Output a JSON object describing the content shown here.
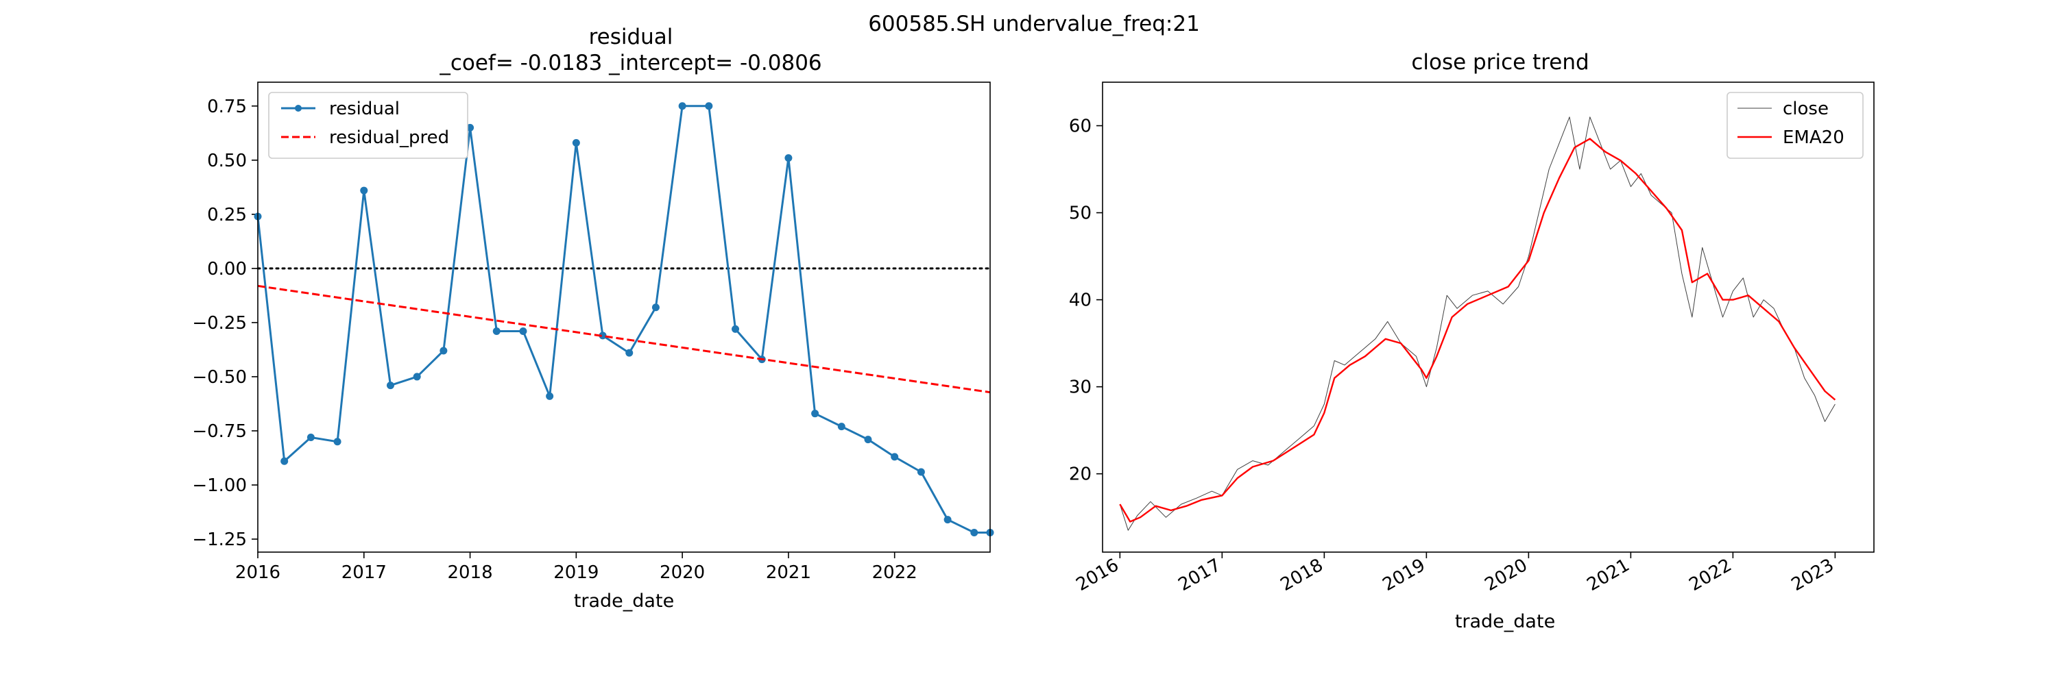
{
  "figure": {
    "suptitle": "600585.SH undervalue_freq:21"
  },
  "chart_data": [
    {
      "type": "line",
      "title_line1": "residual",
      "title_line2": "_coef= -0.0183   _intercept= -0.0806",
      "xlabel": "trade_date",
      "ylabel": "",
      "xlim": [
        2016.0,
        2022.9
      ],
      "ylim": [
        -1.31,
        0.86
      ],
      "x_ticks": [
        2016,
        2017,
        2018,
        2019,
        2020,
        2021,
        2022
      ],
      "x_tick_labels": [
        "2016",
        "2017",
        "2018",
        "2019",
        "2020",
        "2021",
        "2022"
      ],
      "y_ticks": [
        0.75,
        0.5,
        0.25,
        0.0,
        -0.25,
        -0.5,
        -0.75,
        -1.0,
        -1.25
      ],
      "y_tick_labels": [
        "0.75",
        "0.50",
        "0.25",
        "0.00",
        "−0.25",
        "−0.50",
        "−0.75",
        "−1.00",
        "−1.25"
      ],
      "legend_position": "top-left",
      "zero_line": true,
      "series": [
        {
          "name": "residual",
          "color": "#1f77b4",
          "marker": "dot",
          "x": [
            2016.0,
            2016.25,
            2016.5,
            2016.75,
            2017.0,
            2017.25,
            2017.5,
            2017.75,
            2018.0,
            2018.25,
            2018.5,
            2018.75,
            2019.0,
            2019.25,
            2019.5,
            2019.75,
            2020.0,
            2020.25,
            2020.5,
            2020.75,
            2021.0,
            2021.25,
            2021.5,
            2021.75,
            2022.0,
            2022.25,
            2022.5,
            2022.75,
            2022.9
          ],
          "y": [
            0.24,
            -0.89,
            -0.78,
            -0.8,
            0.36,
            -0.54,
            -0.5,
            -0.38,
            0.65,
            -0.29,
            -0.29,
            -0.59,
            0.58,
            -0.31,
            -0.39,
            -0.18,
            0.75,
            0.75,
            -0.28,
            -0.42,
            0.51,
            -0.67,
            -0.73,
            -0.79,
            -0.87,
            -0.94,
            -1.16,
            -1.22,
            -1.22
          ]
        },
        {
          "name": "residual_pred",
          "color": "#ff0000",
          "style": "dashed",
          "x": [
            2016.0,
            2022.9
          ],
          "y": [
            -0.0806,
            -0.572
          ]
        }
      ]
    },
    {
      "type": "line",
      "title": "close price trend",
      "xlabel": "trade_date",
      "ylabel": "",
      "xlim": [
        2015.83,
        2023.38
      ],
      "ylim": [
        11.0,
        65.0
      ],
      "x_ticks": [
        2016,
        2017,
        2018,
        2019,
        2020,
        2021,
        2022,
        2023
      ],
      "x_tick_labels": [
        "2016",
        "2017",
        "2018",
        "2019",
        "2020",
        "2021",
        "2022",
        "2023"
      ],
      "y_ticks": [
        60,
        50,
        40,
        30,
        20
      ],
      "y_tick_labels": [
        "60",
        "50",
        "40",
        "30",
        "20"
      ],
      "legend_position": "top-right",
      "series": [
        {
          "name": "close",
          "color": "#404040",
          "x": [
            2016.0,
            2016.08,
            2016.17,
            2016.3,
            2016.45,
            2016.6,
            2016.75,
            2016.9,
            2017.0,
            2017.15,
            2017.3,
            2017.45,
            2017.6,
            2017.75,
            2017.9,
            2018.0,
            2018.1,
            2018.2,
            2018.35,
            2018.5,
            2018.62,
            2018.75,
            2018.9,
            2019.0,
            2019.1,
            2019.2,
            2019.3,
            2019.45,
            2019.6,
            2019.75,
            2019.9,
            2020.0,
            2020.1,
            2020.2,
            2020.3,
            2020.4,
            2020.5,
            2020.6,
            2020.7,
            2020.8,
            2020.9,
            2021.0,
            2021.1,
            2021.2,
            2021.3,
            2021.4,
            2021.5,
            2021.6,
            2021.7,
            2021.8,
            2021.9,
            2022.0,
            2022.1,
            2022.2,
            2022.3,
            2022.4,
            2022.5,
            2022.6,
            2022.7,
            2022.8,
            2022.9,
            2023.0
          ],
          "y": [
            16.5,
            13.5,
            15.2,
            16.8,
            15.0,
            16.5,
            17.2,
            18.0,
            17.5,
            20.5,
            21.5,
            21.0,
            22.5,
            24.0,
            25.5,
            28.0,
            33.0,
            32.5,
            34.0,
            35.5,
            37.5,
            35.0,
            33.5,
            30.0,
            34.5,
            40.5,
            39.0,
            40.5,
            41.0,
            39.5,
            41.5,
            45.0,
            50.0,
            55.0,
            58.0,
            61.0,
            55.0,
            61.0,
            58.0,
            55.0,
            56.0,
            53.0,
            54.5,
            52.0,
            51.0,
            50.0,
            43.0,
            38.0,
            46.0,
            42.0,
            38.0,
            41.0,
            42.5,
            38.0,
            40.0,
            39.0,
            36.5,
            34.5,
            31.0,
            29.0,
            26.0,
            28.0
          ]
        },
        {
          "name": "EMA20",
          "color": "#ff0000",
          "x": [
            2016.0,
            2016.1,
            2016.2,
            2016.35,
            2016.5,
            2016.65,
            2016.8,
            2017.0,
            2017.15,
            2017.3,
            2017.5,
            2017.7,
            2017.9,
            2018.0,
            2018.1,
            2018.25,
            2018.4,
            2018.6,
            2018.75,
            2018.95,
            2019.0,
            2019.1,
            2019.25,
            2019.4,
            2019.6,
            2019.8,
            2020.0,
            2020.15,
            2020.3,
            2020.45,
            2020.6,
            2020.75,
            2020.9,
            2021.05,
            2021.2,
            2021.35,
            2021.5,
            2021.6,
            2021.75,
            2021.9,
            2022.0,
            2022.15,
            2022.3,
            2022.45,
            2022.6,
            2022.75,
            2022.9,
            2023.0
          ],
          "y": [
            16.5,
            14.5,
            15.0,
            16.3,
            15.8,
            16.3,
            17.0,
            17.5,
            19.5,
            20.8,
            21.5,
            23.0,
            24.5,
            27.0,
            31.0,
            32.5,
            33.5,
            35.5,
            35.0,
            32.0,
            31.0,
            33.5,
            38.0,
            39.5,
            40.5,
            41.5,
            44.5,
            50.0,
            54.0,
            57.5,
            58.5,
            57.0,
            56.0,
            54.5,
            52.5,
            50.5,
            48.0,
            42.0,
            43.0,
            40.0,
            40.0,
            40.5,
            39.0,
            37.5,
            34.5,
            32.0,
            29.5,
            28.5
          ]
        }
      ]
    }
  ]
}
